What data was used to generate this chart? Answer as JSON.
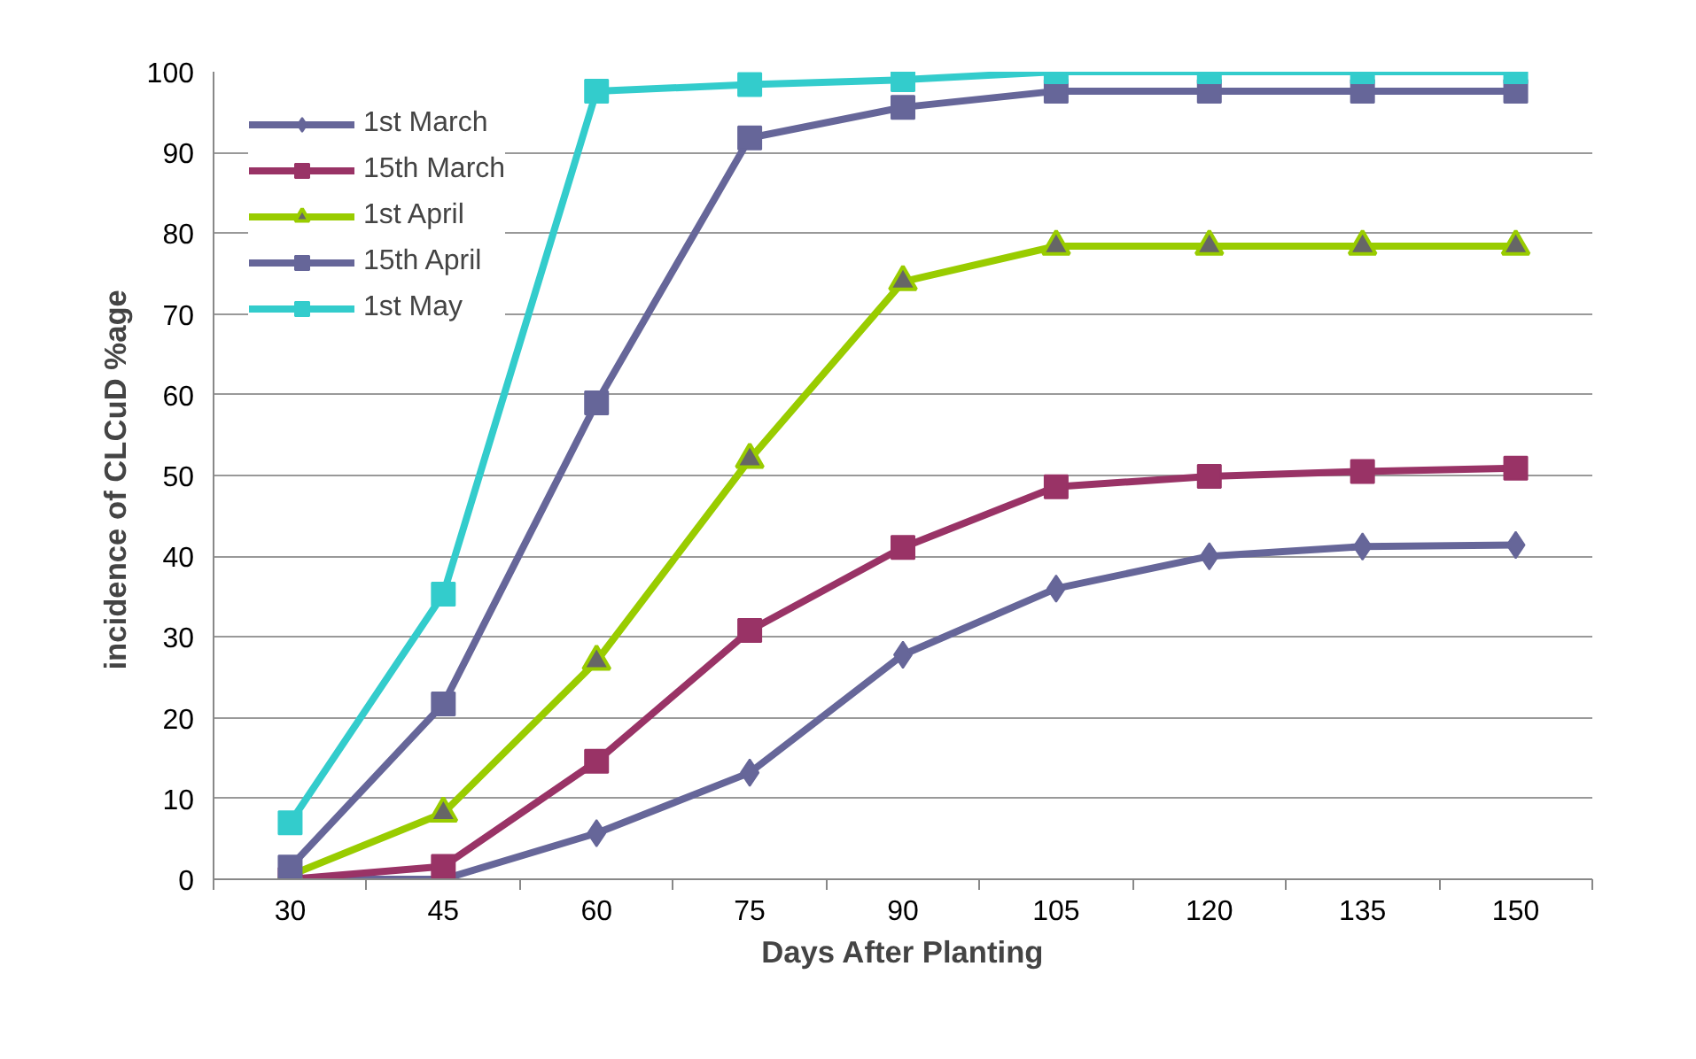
{
  "chart_data": {
    "type": "line",
    "xlabel": "Days After Planting",
    "ylabel": "incidence of CLCuD  %age",
    "categories": [
      "30",
      "45",
      "60",
      "75",
      "90",
      "105",
      "120",
      "135",
      "150"
    ],
    "ylim": [
      0,
      100
    ],
    "yticks": [
      0,
      10,
      20,
      30,
      40,
      50,
      60,
      70,
      80,
      90,
      100
    ],
    "grid": "y",
    "legend": "top left",
    "series": [
      {
        "name": "1st March",
        "color": "#666699",
        "marker": "diamond",
        "values": [
          0,
          0,
          5.7,
          13.2,
          27.8,
          36,
          40,
          41.2,
          41.4
        ]
      },
      {
        "name": "15th March",
        "color": "#993366",
        "marker": "square",
        "values": [
          0,
          1.6,
          14.6,
          30.8,
          41.1,
          48.6,
          49.9,
          50.5,
          50.9
        ]
      },
      {
        "name": "1st April",
        "color": "#99cc00",
        "marker": "triangle",
        "values": [
          0.5,
          8.2,
          27,
          52,
          74,
          78.4,
          78.4,
          78.4,
          78.4
        ]
      },
      {
        "name": "15th April",
        "color": "#666699",
        "marker": "square",
        "values": [
          1.5,
          21.7,
          59,
          91.8,
          95.6,
          97.6,
          97.6,
          97.6,
          97.6
        ]
      },
      {
        "name": "1st May",
        "color": "#33cccc",
        "marker": "square",
        "values": [
          7,
          35.3,
          97.6,
          98.4,
          99,
          100,
          100,
          100,
          100
        ]
      }
    ]
  }
}
